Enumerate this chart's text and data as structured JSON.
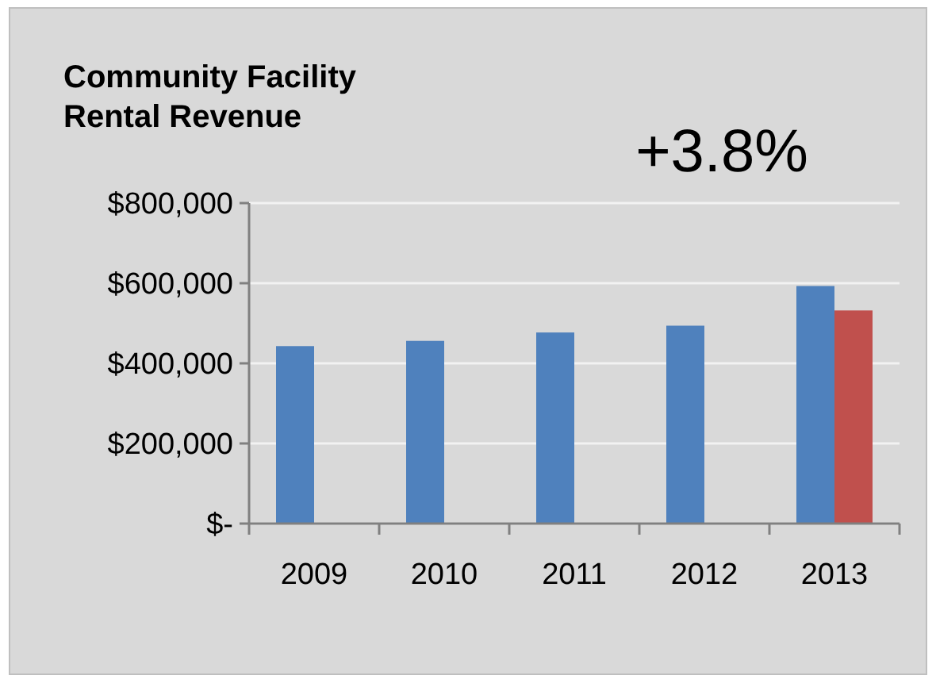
{
  "chart_data": {
    "type": "bar",
    "title": "Community Facility\nRental Revenue",
    "annotations": [
      "+3.8%"
    ],
    "categories": [
      "2009",
      "2010",
      "2011",
      "2012",
      "2013"
    ],
    "series": [
      {
        "color": "#4f81bd",
        "values": [
          443000,
          456000,
          477000,
          494000,
          593000
        ]
      },
      {
        "color": "#c0504d",
        "values": [
          null,
          null,
          null,
          null,
          532000
        ]
      }
    ],
    "ylim": [
      0,
      800000
    ],
    "yticks": [
      {
        "value": 0,
        "label": "$-"
      },
      {
        "value": 200000,
        "label": "$200,000"
      },
      {
        "value": 400000,
        "label": "$400,000"
      },
      {
        "value": 600000,
        "label": "$600,000"
      },
      {
        "value": 800000,
        "label": "$800,000"
      }
    ],
    "grid": "y"
  }
}
